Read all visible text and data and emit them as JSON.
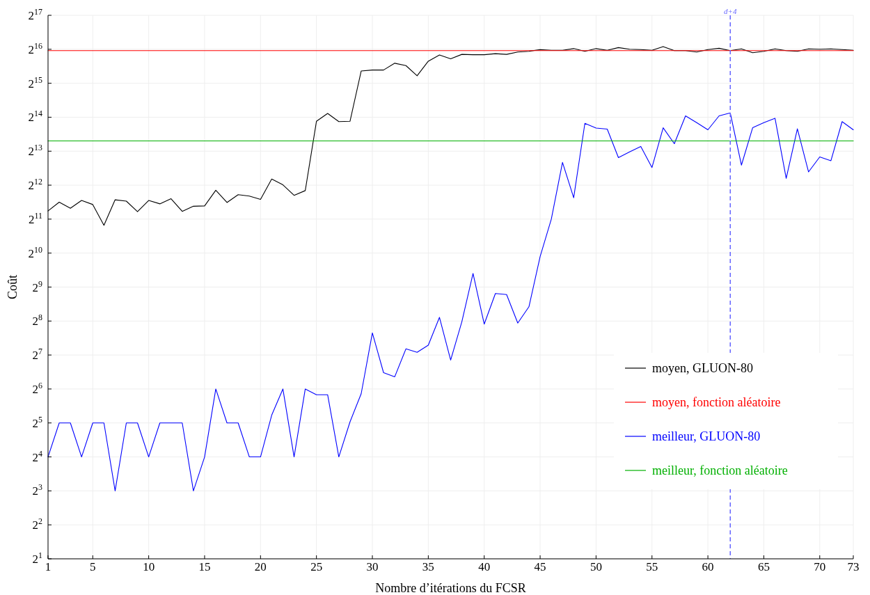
{
  "chart_data": {
    "type": "line",
    "xlabel": "Nombre d’itérations du FCSR",
    "ylabel": "Coût",
    "x": [
      1,
      2,
      3,
      4,
      5,
      6,
      7,
      8,
      9,
      10,
      11,
      12,
      13,
      14,
      15,
      16,
      17,
      18,
      19,
      20,
      21,
      22,
      23,
      24,
      25,
      26,
      27,
      28,
      29,
      30,
      31,
      32,
      33,
      34,
      35,
      36,
      37,
      38,
      39,
      40,
      41,
      42,
      43,
      44,
      45,
      46,
      47,
      48,
      49,
      50,
      51,
      52,
      53,
      54,
      55,
      56,
      57,
      58,
      59,
      60,
      61,
      62,
      63,
      64,
      65,
      66,
      67,
      68,
      69,
      70,
      71,
      72,
      73
    ],
    "series": [
      {
        "name": "moyen, GLUON-80",
        "color": "#000000",
        "values": [
          2419,
          2896,
          2556,
          2998,
          2759,
          1807,
          3039,
          2957,
          2386,
          2998,
          2798,
          3105,
          2402,
          2664,
          2683,
          3693,
          2875,
          3373,
          3281,
          3062,
          4640,
          4124,
          3328,
          3666,
          15073,
          17682,
          14975,
          15073,
          42041,
          42925,
          42925,
          49316,
          46989,
          38174,
          51413,
          58262,
          53968,
          59081,
          58655,
          58655,
          59900,
          59081,
          61997,
          62882,
          65083,
          64192,
          64192,
          66454,
          62882,
          66454,
          64192,
          67830,
          65536,
          65083,
          64192,
          69272,
          63734,
          63734,
          61997,
          65083,
          66913,
          63734,
          65992,
          61145,
          62882,
          65992,
          63734,
          62882,
          65992,
          65536,
          65992,
          65083,
          64192
        ]
      },
      {
        "name": "moyen, fonction aléatoire",
        "color": "#ff0000",
        "values": [
          63700,
          63700,
          63700,
          63700,
          63700,
          63700,
          63700,
          63700,
          63700,
          63700,
          63700,
          63700,
          63700,
          63700,
          63700,
          63700,
          63700,
          63700,
          63700,
          63700,
          63700,
          63700,
          63700,
          63700,
          63700,
          63700,
          63700,
          63700,
          63700,
          63700,
          63700,
          63700,
          63700,
          63700,
          63700,
          63700,
          63700,
          63700,
          63700,
          63700,
          63700,
          63700,
          63700,
          63700,
          63700,
          63700,
          63700,
          63700,
          63700,
          63700,
          63700,
          63700,
          63700,
          63700,
          63700,
          63700,
          63700,
          63700,
          63700,
          63700,
          63700,
          63700,
          63700,
          63700,
          63700,
          63700,
          63700,
          63700,
          63700,
          63700,
          63700,
          63700,
          63700
        ]
      },
      {
        "name": "meilleur, GLUON-80",
        "color": "#0000ff",
        "values": [
          16,
          32,
          32,
          16,
          32,
          32,
          8,
          32,
          32,
          16,
          32,
          32,
          32,
          8,
          16,
          64,
          32,
          32,
          16,
          16,
          37.5,
          64,
          16,
          64,
          56.9,
          56.9,
          16,
          32.7,
          58.1,
          200.8,
          89.3,
          82.1,
          145,
          135.3,
          156.5,
          276,
          115.4,
          252.4,
          675.6,
          240.5,
          448.8,
          439.6,
          245.6,
          342.5,
          955,
          2048,
          6517,
          3170,
          14460,
          13125,
          12855,
          7181,
          8077,
          9029,
          5874,
          13216,
          9543,
          16843,
          14664,
          12679,
          16843,
          17867,
          6165,
          13216,
          14664,
          16048,
          4705,
          12943,
          5366,
          7282,
          6747,
          14975,
          12679
        ]
      },
      {
        "name": "meilleur, fonction aléatoire",
        "color": "#00b000",
        "values": [
          10100,
          10100,
          10100,
          10100,
          10100,
          10100,
          10100,
          10100,
          10100,
          10100,
          10100,
          10100,
          10100,
          10100,
          10100,
          10100,
          10100,
          10100,
          10100,
          10100,
          10100,
          10100,
          10100,
          10100,
          10100,
          10100,
          10100,
          10100,
          10100,
          10100,
          10100,
          10100,
          10100,
          10100,
          10100,
          10100,
          10100,
          10100,
          10100,
          10100,
          10100,
          10100,
          10100,
          10100,
          10100,
          10100,
          10100,
          10100,
          10100,
          10100,
          10100,
          10100,
          10100,
          10100,
          10100,
          10100,
          10100,
          10100,
          10100,
          10100,
          10100,
          10100,
          10100,
          10100,
          10100,
          10100,
          10100,
          10100,
          10100,
          10100,
          10100,
          10100,
          10100
        ]
      }
    ],
    "log": "y",
    "grid": true,
    "legend": "bottom right",
    "marker": "none",
    "line_style": "solid",
    "xlim": [
      1,
      73
    ],
    "xticks": [
      1,
      5,
      10,
      15,
      20,
      25,
      30,
      35,
      40,
      45,
      50,
      55,
      60,
      65,
      70,
      73
    ],
    "ylim": [
      2,
      131072
    ],
    "yticks": [
      {
        "value": 2,
        "label": "2$^{1}$"
      },
      {
        "value": 4,
        "label": "2$^{2}$"
      },
      {
        "value": 8,
        "label": "2$^{3}$"
      },
      {
        "value": 16,
        "label": "2$^{4}$"
      },
      {
        "value": 32,
        "label": "2$^{5}$"
      },
      {
        "value": 64,
        "label": "2$^{6}$"
      },
      {
        "value": 128,
        "label": "2$^{7}$"
      },
      {
        "value": 256,
        "label": "2$^{8}$"
      },
      {
        "value": 512,
        "label": "2$^{9}$"
      },
      {
        "value": 1024,
        "label": "2$^{10}$"
      },
      {
        "value": 2048,
        "label": "2$^{11}$"
      },
      {
        "value": 4096,
        "label": "2$^{12}$"
      },
      {
        "value": 8192,
        "label": "2$^{13}$"
      },
      {
        "value": 16384,
        "label": "2$^{14}$"
      },
      {
        "value": 32768,
        "label": "2$^{15}$"
      },
      {
        "value": 65536,
        "label": "2$^{16}$"
      },
      {
        "value": 131072,
        "label": "2$^{17}$"
      }
    ],
    "ref_lines": [
      {
        "axis": "x",
        "value": 62,
        "label": "d+4",
        "color": "#6666ff",
        "line_style": "dashed"
      }
    ]
  }
}
